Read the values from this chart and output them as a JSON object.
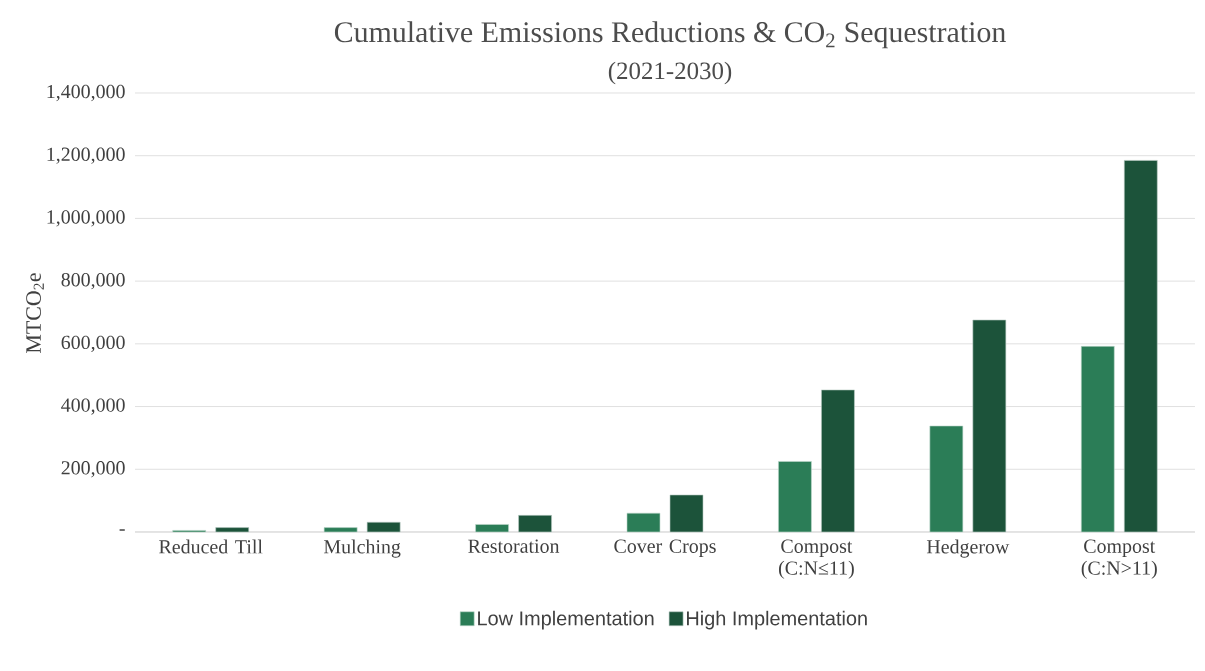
{
  "chart_data": {
    "type": "bar",
    "title": "Cumulative Emissions Reductions & CO$_{2}$ Sequestration",
    "subtitle": "(2021-2030)",
    "ylabel": "MTCO$_{2}$e",
    "categories": [
      "Reduced Till",
      "Mulching",
      "Restoration",
      "Cover Crops",
      "Compost (C:N≤11)",
      "Hedgerow",
      "Compost (C:N>11)"
    ],
    "series": [
      {
        "name": "Low Implementation",
        "color": "#2b7d57",
        "values": [
          5000,
          14000,
          24000,
          60000,
          225000,
          338000,
          592000
        ]
      },
      {
        "name": "High Implementation",
        "color": "#1c533a",
        "values": [
          14000,
          31000,
          53000,
          118000,
          453000,
          676000,
          1185000
        ]
      }
    ],
    "ylim": [
      0,
      1400000
    ],
    "yticks": [
      {
        "value": 0,
        "label": "-"
      },
      {
        "value": 200000,
        "label": "200,000"
      },
      {
        "value": 400000,
        "label": "400,000"
      },
      {
        "value": 600000,
        "label": "600,000"
      },
      {
        "value": 800000,
        "label": "800,000"
      },
      {
        "value": 1000000,
        "label": "1,000,000"
      },
      {
        "value": 1200000,
        "label": "1,200,000"
      },
      {
        "value": 1400000,
        "label": "1,400,000"
      }
    ],
    "grid": "y",
    "legend": "bottom"
  }
}
